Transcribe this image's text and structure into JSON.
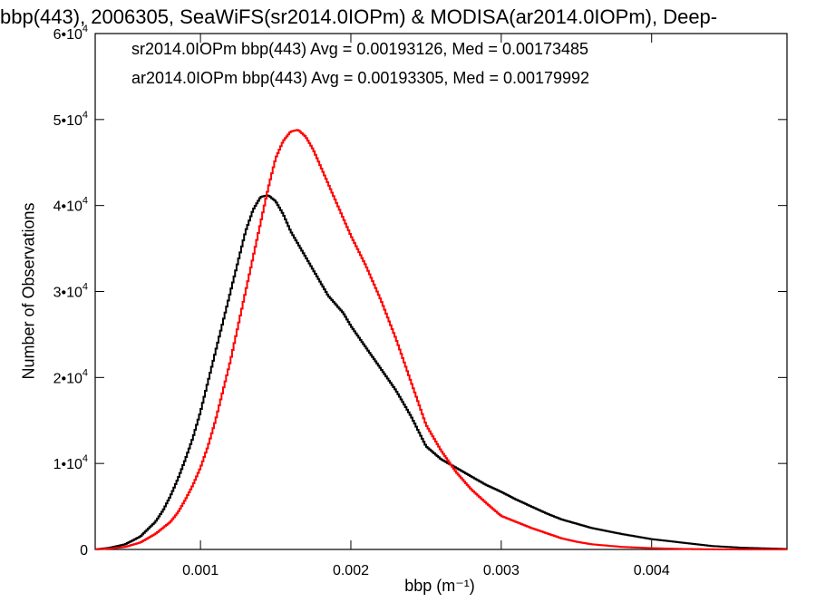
{
  "chart_data": {
    "type": "line",
    "title": "bbp(443), 2006305, SeaWiFS(sr2014.0IOPm) & MODISA(ar2014.0IOPm), Deep-",
    "xlabel": "bbp (m⁻¹)",
    "ylabel": "Number of Observations",
    "xlim": [
      0.0003,
      0.0049
    ],
    "ylim": [
      0,
      60000
    ],
    "x_ticks": [
      0.001,
      0.002,
      0.003,
      0.004
    ],
    "x_tick_labels": [
      "0.001",
      "0.002",
      "0.003",
      "0.004"
    ],
    "y_ticks": [
      0,
      10000,
      20000,
      30000,
      40000,
      50000,
      60000
    ],
    "y_tick_labels": [
      {
        "mant": "0",
        "exp": ""
      },
      {
        "mant": "1•10",
        "exp": "4"
      },
      {
        "mant": "2•10",
        "exp": "4"
      },
      {
        "mant": "3•10",
        "exp": "4"
      },
      {
        "mant": "4•10",
        "exp": "4"
      },
      {
        "mant": "5•10",
        "exp": "4"
      },
      {
        "mant": "6•10",
        "exp": "4"
      }
    ],
    "grid": false,
    "legend_placement": "top-left",
    "series": [
      {
        "name": "sr2014.0IOPm",
        "legend": "sr2014.0IOPm bbp(443) Avg = 0.00193126, Med = 0.00173485",
        "color": "#000000",
        "x": [
          0.0003,
          0.0004,
          0.0005,
          0.0006,
          0.0007,
          0.00075,
          0.0008,
          0.00085,
          0.0009,
          0.00095,
          0.001,
          0.00105,
          0.0011,
          0.00115,
          0.0012,
          0.00125,
          0.0013,
          0.00135,
          0.0014,
          0.00145,
          0.0015,
          0.00155,
          0.0016,
          0.00165,
          0.0017,
          0.00175,
          0.0018,
          0.00185,
          0.0019,
          0.00195,
          0.002,
          0.0021,
          0.0022,
          0.0023,
          0.0024,
          0.0025,
          0.0026,
          0.0027,
          0.0028,
          0.0029,
          0.003,
          0.0031,
          0.0032,
          0.0033,
          0.0034,
          0.0035,
          0.0036,
          0.0038,
          0.004,
          0.0042,
          0.0044,
          0.0046,
          0.0049
        ],
        "values": [
          0,
          200,
          600,
          1500,
          3200,
          4500,
          6200,
          8200,
          10500,
          13000,
          16000,
          19500,
          23000,
          26500,
          30000,
          33500,
          37000,
          39500,
          41000,
          41200,
          40500,
          39000,
          37000,
          35500,
          34000,
          32500,
          31000,
          29500,
          28500,
          27500,
          26000,
          23500,
          21000,
          18500,
          15500,
          12000,
          10500,
          9500,
          8500,
          7500,
          6700,
          5800,
          5000,
          4200,
          3500,
          3000,
          2500,
          1800,
          1200,
          800,
          400,
          200,
          50
        ]
      },
      {
        "name": "ar2014.0IOPm",
        "legend": "ar2014.0IOPm bbp(443) Avg = 0.00193305, Med = 0.00179992",
        "color": "#ff0000",
        "x": [
          0.0003,
          0.0004,
          0.0005,
          0.0006,
          0.0007,
          0.0008,
          0.00085,
          0.0009,
          0.00095,
          0.001,
          0.00105,
          0.0011,
          0.00115,
          0.0012,
          0.00125,
          0.0013,
          0.00135,
          0.0014,
          0.00145,
          0.0015,
          0.00155,
          0.0016,
          0.00165,
          0.0017,
          0.00175,
          0.0018,
          0.00185,
          0.0019,
          0.00195,
          0.002,
          0.0021,
          0.0022,
          0.0023,
          0.0024,
          0.0025,
          0.0026,
          0.0027,
          0.0028,
          0.0029,
          0.003,
          0.0031,
          0.0032,
          0.0033,
          0.0034,
          0.0035,
          0.0036,
          0.0038,
          0.004,
          0.0042,
          0.0044,
          0.0046,
          0.0049
        ],
        "values": [
          0,
          100,
          300,
          800,
          1800,
          3200,
          4300,
          5800,
          7500,
          9500,
          12000,
          15000,
          18500,
          22000,
          26000,
          30000,
          34000,
          38000,
          42000,
          45500,
          47500,
          48600,
          48800,
          48000,
          46500,
          44500,
          42500,
          40500,
          38500,
          36500,
          33000,
          29000,
          24500,
          19500,
          14500,
          11500,
          9000,
          7000,
          5400,
          3900,
          3200,
          2500,
          1900,
          1300,
          900,
          600,
          300,
          150,
          60,
          20,
          5,
          0
        ]
      }
    ]
  }
}
